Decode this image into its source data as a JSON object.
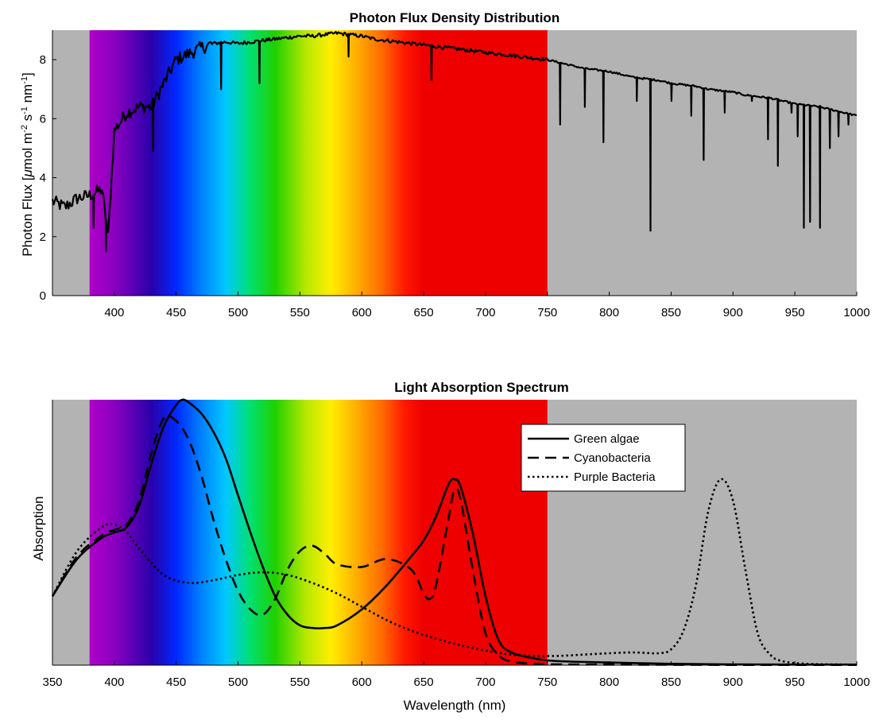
{
  "colors": {
    "background": "#ffffff",
    "outside_visible": "#b3b3b3",
    "line": "#000000",
    "spectrum_stops": [
      {
        "nm": 380,
        "color": "#b000c8"
      },
      {
        "nm": 400,
        "color": "#8a00c0"
      },
      {
        "nm": 430,
        "color": "#2a00aa"
      },
      {
        "nm": 450,
        "color": "#0028ff"
      },
      {
        "nm": 470,
        "color": "#0080ff"
      },
      {
        "nm": 490,
        "color": "#00c8ff"
      },
      {
        "nm": 510,
        "color": "#00e070"
      },
      {
        "nm": 530,
        "color": "#20d000"
      },
      {
        "nm": 555,
        "color": "#b8e800"
      },
      {
        "nm": 575,
        "color": "#ffee00"
      },
      {
        "nm": 595,
        "color": "#ffb000"
      },
      {
        "nm": 615,
        "color": "#ff7000"
      },
      {
        "nm": 635,
        "color": "#ff1800"
      },
      {
        "nm": 650,
        "color": "#ee0000"
      },
      {
        "nm": 750,
        "color": "#ee0000"
      }
    ]
  },
  "chart_data": [
    {
      "type": "line",
      "title": "Photon Flux Density Distribution",
      "xlabel": "",
      "ylabel": "Photon Flux [μmol m-2 s-1 nm-1]",
      "ylabel_parts": {
        "base": "Photon Flux [",
        "mu": "μ",
        "mol": "mol m",
        "sup1": "-2",
        "s": " s",
        "sup2": "-1",
        "nm": " nm",
        "sup3": "-1",
        "close": "]"
      },
      "xlim": [
        350,
        1000
      ],
      "ylim": [
        0,
        9
      ],
      "xticks": [
        400,
        450,
        500,
        550,
        600,
        650,
        700,
        750,
        800,
        850,
        900,
        950,
        1000
      ],
      "yticks": [
        0,
        2,
        4,
        6,
        8
      ],
      "visible_band_nm": [
        380,
        750
      ],
      "grid": false,
      "series": [
        {
          "x": [
            350,
            360,
            370,
            380,
            390,
            395,
            400,
            410,
            420,
            430,
            435,
            440,
            450,
            460,
            470,
            480,
            490,
            500,
            510,
            520,
            530,
            540,
            550,
            560,
            570,
            580,
            590,
            600,
            610,
            620,
            630,
            640,
            650,
            660,
            670,
            680,
            690,
            700,
            710,
            720,
            730,
            740,
            750,
            760,
            770,
            780,
            790,
            800,
            810,
            820,
            830,
            840,
            850,
            860,
            870,
            880,
            890,
            900,
            910,
            920,
            930,
            940,
            950,
            960,
            970,
            980,
            990,
            1000
          ],
          "y": [
            3.2,
            3.0,
            3.3,
            3.4,
            3.6,
            2.0,
            5.6,
            6.2,
            6.4,
            6.4,
            6.8,
            7.2,
            8.0,
            8.2,
            8.4,
            8.55,
            8.6,
            8.55,
            8.6,
            8.65,
            8.7,
            8.75,
            8.8,
            8.8,
            8.85,
            8.9,
            8.85,
            8.8,
            8.7,
            8.65,
            8.6,
            8.55,
            8.5,
            8.45,
            8.4,
            8.35,
            8.3,
            8.25,
            8.2,
            8.15,
            8.1,
            8.05,
            8.0,
            7.9,
            7.8,
            7.7,
            7.65,
            7.6,
            7.5,
            7.4,
            7.35,
            7.3,
            7.2,
            7.15,
            7.1,
            7.0,
            6.95,
            6.9,
            6.8,
            6.75,
            6.7,
            6.6,
            6.5,
            6.45,
            6.4,
            6.3,
            6.2,
            6.1
          ]
        }
      ],
      "absorption_dips": [
        {
          "x": 383,
          "y": 2.3
        },
        {
          "x": 393,
          "y": 1.5
        },
        {
          "x": 431,
          "y": 4.9
        },
        {
          "x": 486,
          "y": 7.0
        },
        {
          "x": 517,
          "y": 7.2
        },
        {
          "x": 589,
          "y": 8.1
        },
        {
          "x": 656,
          "y": 7.3
        },
        {
          "x": 760,
          "y": 5.8
        },
        {
          "x": 780,
          "y": 6.4
        },
        {
          "x": 795,
          "y": 5.2
        },
        {
          "x": 822,
          "y": 6.6
        },
        {
          "x": 833,
          "y": 2.2
        },
        {
          "x": 850,
          "y": 6.6
        },
        {
          "x": 866,
          "y": 6.1
        },
        {
          "x": 876,
          "y": 4.6
        },
        {
          "x": 893,
          "y": 6.2
        },
        {
          "x": 915,
          "y": 6.6
        },
        {
          "x": 928,
          "y": 5.3
        },
        {
          "x": 936,
          "y": 4.4
        },
        {
          "x": 947,
          "y": 6.2
        },
        {
          "x": 952,
          "y": 5.4
        },
        {
          "x": 957,
          "y": 2.3
        },
        {
          "x": 962,
          "y": 2.5
        },
        {
          "x": 970,
          "y": 2.3
        },
        {
          "x": 978,
          "y": 5.0
        },
        {
          "x": 985,
          "y": 5.4
        },
        {
          "x": 993,
          "y": 5.8
        }
      ]
    },
    {
      "type": "line",
      "title": "Light Absorption Spectrum",
      "xlabel": "Wavelength (nm)",
      "ylabel": "Absorption",
      "xlim": [
        350,
        1000
      ],
      "ylim": [
        0,
        1
      ],
      "xticks": [
        350,
        400,
        450,
        500,
        550,
        600,
        650,
        700,
        750,
        800,
        850,
        900,
        950,
        1000
      ],
      "yticks": [],
      "visible_band_nm": [
        380,
        750
      ],
      "grid": false,
      "legend": {
        "placement": "upper-middle-right"
      },
      "series": [
        {
          "name": "Green algae",
          "style": "solid",
          "x": [
            350,
            370,
            390,
            400,
            410,
            420,
            430,
            440,
            450,
            455,
            460,
            470,
            480,
            490,
            500,
            510,
            520,
            530,
            540,
            550,
            560,
            570,
            580,
            600,
            620,
            640,
            650,
            660,
            670,
            675,
            680,
            690,
            700,
            710,
            720,
            740,
            760,
            800,
            850,
            900,
            950,
            1000
          ],
          "y": [
            0.26,
            0.4,
            0.48,
            0.5,
            0.52,
            0.6,
            0.76,
            0.9,
            0.98,
            1.0,
            0.99,
            0.95,
            0.88,
            0.78,
            0.64,
            0.5,
            0.37,
            0.26,
            0.19,
            0.15,
            0.14,
            0.14,
            0.15,
            0.21,
            0.3,
            0.41,
            0.47,
            0.56,
            0.68,
            0.7,
            0.67,
            0.49,
            0.26,
            0.1,
            0.05,
            0.025,
            0.015,
            0.01,
            0.005,
            0.003,
            0.002,
            0.002
          ]
        },
        {
          "name": "Cyanobacteria",
          "style": "dashed",
          "x": [
            350,
            370,
            390,
            400,
            410,
            420,
            430,
            440,
            450,
            460,
            470,
            480,
            490,
            500,
            510,
            520,
            530,
            540,
            550,
            560,
            570,
            580,
            600,
            620,
            640,
            650,
            655,
            660,
            670,
            675,
            680,
            690,
            700,
            710,
            720,
            740,
            760,
            800,
            900,
            1000
          ],
          "y": [
            0.26,
            0.41,
            0.49,
            0.51,
            0.53,
            0.62,
            0.8,
            0.93,
            0.92,
            0.85,
            0.72,
            0.55,
            0.4,
            0.28,
            0.21,
            0.19,
            0.25,
            0.36,
            0.43,
            0.45,
            0.42,
            0.38,
            0.37,
            0.4,
            0.36,
            0.27,
            0.25,
            0.3,
            0.55,
            0.66,
            0.62,
            0.35,
            0.12,
            0.04,
            0.015,
            0.005,
            0.003,
            0.002,
            0.001,
            0.001
          ]
        },
        {
          "name": "Purple Bacteria",
          "style": "dotted",
          "x": [
            350,
            370,
            390,
            400,
            410,
            420,
            440,
            460,
            480,
            500,
            520,
            540,
            560,
            580,
            600,
            620,
            640,
            660,
            680,
            700,
            720,
            740,
            760,
            780,
            800,
            820,
            840,
            850,
            860,
            870,
            880,
            890,
            900,
            910,
            920,
            930,
            940,
            960,
            1000
          ],
          "y": [
            0.26,
            0.43,
            0.52,
            0.53,
            0.5,
            0.44,
            0.34,
            0.31,
            0.32,
            0.34,
            0.35,
            0.34,
            0.31,
            0.27,
            0.22,
            0.17,
            0.13,
            0.1,
            0.075,
            0.055,
            0.04,
            0.035,
            0.035,
            0.04,
            0.045,
            0.048,
            0.045,
            0.06,
            0.13,
            0.3,
            0.58,
            0.7,
            0.62,
            0.36,
            0.12,
            0.04,
            0.015,
            0.005,
            0.002
          ]
        }
      ]
    }
  ]
}
